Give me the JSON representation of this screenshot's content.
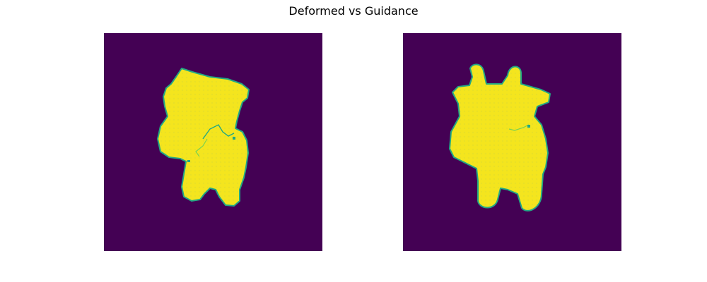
{
  "figure": {
    "title": "Deformed vs Guidance"
  },
  "panels": [
    {
      "id": "deformed",
      "content": "yellow cow silhouette mask (deformed) on dark purple background"
    },
    {
      "id": "guidance",
      "content": "yellow cow silhouette mask with horns (guidance) on dark purple background"
    }
  ],
  "colors": {
    "background": "#440154",
    "foreground": "#f4e51e",
    "edge": "#22a884",
    "edge_light": "#7ad151"
  }
}
